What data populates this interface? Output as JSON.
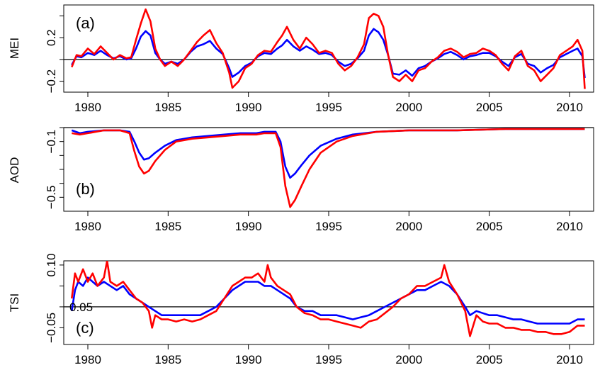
{
  "chart_data": [
    {
      "type": "line",
      "panel_label": "(a)",
      "ylabel": "MEI",
      "xlim": [
        1978.5,
        2011.5
      ],
      "ylim": [
        -0.3,
        0.5
      ],
      "x_ticks": [
        1980,
        1985,
        1990,
        1995,
        2000,
        2005,
        2010
      ],
      "y_ticks": [
        -0.2,
        0.2
      ],
      "y_minor_ticks": [
        -0.2,
        0.0,
        0.2,
        0.4
      ],
      "hline": 0.0,
      "series": [
        {
          "color": "#0000ff",
          "x": [
            1979.0,
            1979.3,
            1979.6,
            1980.0,
            1980.4,
            1980.8,
            1981.2,
            1981.6,
            1982.0,
            1982.4,
            1982.7,
            1983.0,
            1983.3,
            1983.6,
            1983.9,
            1984.2,
            1984.5,
            1984.8,
            1985.2,
            1985.6,
            1986.0,
            1986.4,
            1986.8,
            1987.2,
            1987.6,
            1988.0,
            1988.4,
            1988.8,
            1989.0,
            1989.4,
            1989.8,
            1990.2,
            1990.6,
            1991.0,
            1991.4,
            1991.8,
            1992.1,
            1992.4,
            1992.8,
            1993.2,
            1993.6,
            1994.0,
            1994.4,
            1994.8,
            1995.2,
            1995.6,
            1996.0,
            1996.4,
            1996.8,
            1997.2,
            1997.5,
            1997.8,
            1998.1,
            1998.4,
            1998.7,
            1999.0,
            1999.4,
            1999.8,
            2000.2,
            2000.6,
            2001.0,
            2001.4,
            2001.8,
            2002.2,
            2002.6,
            2003.0,
            2003.4,
            2003.8,
            2004.2,
            2004.6,
            2005.0,
            2005.4,
            2005.8,
            2006.2,
            2006.6,
            2007.0,
            2007.4,
            2007.8,
            2008.2,
            2008.6,
            2009.0,
            2009.4,
            2009.8,
            2010.2,
            2010.5,
            2010.8,
            2010.95
          ],
          "y": [
            -0.05,
            0.03,
            0.02,
            0.06,
            0.04,
            0.08,
            0.04,
            0.01,
            0.03,
            0.0,
            0.01,
            0.1,
            0.21,
            0.26,
            0.22,
            0.06,
            0.0,
            -0.04,
            -0.02,
            -0.04,
            0.0,
            0.07,
            0.12,
            0.14,
            0.17,
            0.1,
            0.05,
            -0.08,
            -0.16,
            -0.12,
            -0.06,
            -0.03,
            0.03,
            0.06,
            0.05,
            0.1,
            0.13,
            0.18,
            0.12,
            0.08,
            0.12,
            0.09,
            0.05,
            0.06,
            0.04,
            -0.02,
            -0.06,
            -0.04,
            0.01,
            0.08,
            0.22,
            0.28,
            0.25,
            0.18,
            0.04,
            -0.13,
            -0.14,
            -0.1,
            -0.15,
            -0.08,
            -0.06,
            -0.02,
            0.01,
            0.05,
            0.07,
            0.04,
            0.0,
            0.03,
            0.04,
            0.06,
            0.06,
            0.03,
            -0.02,
            -0.06,
            0.02,
            0.05,
            -0.04,
            -0.06,
            -0.12,
            -0.08,
            -0.05,
            0.02,
            0.05,
            0.08,
            0.1,
            0.03,
            -0.17
          ]
        },
        {
          "color": "#ff0000",
          "x": [
            1979.0,
            1979.3,
            1979.6,
            1980.0,
            1980.4,
            1980.8,
            1981.2,
            1981.6,
            1982.0,
            1982.4,
            1982.7,
            1983.0,
            1983.3,
            1983.6,
            1983.9,
            1984.2,
            1984.5,
            1984.8,
            1985.2,
            1985.6,
            1986.0,
            1986.4,
            1986.8,
            1987.2,
            1987.6,
            1988.0,
            1988.4,
            1988.8,
            1989.0,
            1989.4,
            1989.8,
            1990.2,
            1990.6,
            1991.0,
            1991.4,
            1991.8,
            1992.1,
            1992.4,
            1992.8,
            1993.2,
            1993.6,
            1994.0,
            1994.4,
            1994.8,
            1995.2,
            1995.6,
            1996.0,
            1996.4,
            1996.8,
            1997.2,
            1997.5,
            1997.8,
            1998.1,
            1998.4,
            1998.7,
            1999.0,
            1999.4,
            1999.8,
            2000.2,
            2000.6,
            2001.0,
            2001.4,
            2001.8,
            2002.2,
            2002.6,
            2003.0,
            2003.4,
            2003.8,
            2004.2,
            2004.6,
            2005.0,
            2005.4,
            2005.8,
            2006.2,
            2006.6,
            2007.0,
            2007.4,
            2007.8,
            2008.2,
            2008.6,
            2009.0,
            2009.4,
            2009.8,
            2010.2,
            2010.5,
            2010.8,
            2010.95
          ],
          "y": [
            -0.07,
            0.04,
            0.03,
            0.1,
            0.05,
            0.12,
            0.06,
            0.0,
            0.04,
            0.01,
            0.02,
            0.18,
            0.33,
            0.46,
            0.35,
            0.1,
            0.0,
            -0.06,
            -0.02,
            -0.06,
            0.0,
            0.08,
            0.16,
            0.22,
            0.27,
            0.15,
            0.06,
            -0.12,
            -0.26,
            -0.2,
            -0.08,
            -0.04,
            0.04,
            0.08,
            0.07,
            0.16,
            0.22,
            0.3,
            0.18,
            0.1,
            0.2,
            0.14,
            0.06,
            0.08,
            0.06,
            -0.04,
            -0.1,
            -0.06,
            0.02,
            0.14,
            0.38,
            0.42,
            0.4,
            0.3,
            0.04,
            -0.16,
            -0.2,
            -0.14,
            -0.2,
            -0.1,
            -0.08,
            -0.02,
            0.02,
            0.08,
            0.1,
            0.07,
            0.02,
            0.05,
            0.06,
            0.1,
            0.08,
            0.04,
            -0.04,
            -0.1,
            0.03,
            0.08,
            -0.06,
            -0.1,
            -0.2,
            -0.14,
            -0.08,
            0.04,
            0.08,
            0.12,
            0.18,
            0.08,
            -0.27
          ]
        }
      ]
    },
    {
      "type": "line",
      "panel_label": "(b)",
      "ylabel": "AOD",
      "xlim": [
        1978.5,
        2011.5
      ],
      "ylim": [
        -0.6,
        0.0
      ],
      "x_ticks": [
        1980,
        1985,
        1990,
        1995,
        2000,
        2005,
        2010
      ],
      "y_ticks": [
        -0.1,
        -0.5
      ],
      "y_minor_ticks": [
        -0.5,
        -0.4,
        -0.3,
        -0.2,
        -0.1,
        0.0
      ],
      "y_tick_labels": [
        "−0.1",
        "−0.5"
      ],
      "hline": 0.0,
      "series": [
        {
          "color": "#0000ff",
          "x": [
            1979.0,
            1979.5,
            1980.0,
            1981.0,
            1982.0,
            1982.6,
            1982.9,
            1983.2,
            1983.5,
            1983.8,
            1984.2,
            1984.8,
            1985.5,
            1986.5,
            1987.5,
            1988.5,
            1989.5,
            1990.5,
            1991.0,
            1991.4,
            1991.7,
            1992.0,
            1992.3,
            1992.6,
            1992.9,
            1993.3,
            1993.8,
            1994.5,
            1995.5,
            1996.5,
            1998.0,
            2000.0,
            2003.0,
            2006.0,
            2009.0,
            2010.95
          ],
          "y": [
            -0.02,
            -0.04,
            -0.03,
            -0.02,
            -0.02,
            -0.03,
            -0.1,
            -0.18,
            -0.23,
            -0.22,
            -0.18,
            -0.13,
            -0.09,
            -0.07,
            -0.06,
            -0.05,
            -0.04,
            -0.04,
            -0.03,
            -0.03,
            -0.03,
            -0.1,
            -0.28,
            -0.36,
            -0.33,
            -0.27,
            -0.2,
            -0.13,
            -0.08,
            -0.05,
            -0.03,
            -0.02,
            -0.02,
            -0.01,
            -0.01,
            -0.01
          ]
        },
        {
          "color": "#ff0000",
          "x": [
            1979.0,
            1979.5,
            1980.0,
            1981.0,
            1982.0,
            1982.6,
            1982.9,
            1983.2,
            1983.5,
            1983.8,
            1984.2,
            1984.8,
            1985.5,
            1986.5,
            1987.5,
            1988.5,
            1989.5,
            1990.5,
            1991.0,
            1991.4,
            1991.7,
            1992.0,
            1992.3,
            1992.6,
            1992.9,
            1993.3,
            1993.8,
            1994.5,
            1995.5,
            1996.5,
            1998.0,
            2000.0,
            2003.0,
            2006.0,
            2009.0,
            2010.95
          ],
          "y": [
            -0.04,
            -0.05,
            -0.04,
            -0.02,
            -0.02,
            -0.04,
            -0.17,
            -0.28,
            -0.33,
            -0.31,
            -0.24,
            -0.16,
            -0.1,
            -0.08,
            -0.07,
            -0.06,
            -0.05,
            -0.05,
            -0.04,
            -0.04,
            -0.04,
            -0.14,
            -0.42,
            -0.57,
            -0.52,
            -0.42,
            -0.3,
            -0.18,
            -0.1,
            -0.06,
            -0.03,
            -0.02,
            -0.02,
            -0.01,
            -0.01,
            -0.01
          ]
        }
      ]
    },
    {
      "type": "line",
      "panel_label": "(c)",
      "ylabel": "TSI",
      "xlim": [
        1978.5,
        2011.5
      ],
      "ylim": [
        -0.09,
        0.11
      ],
      "x_ticks": [
        1980,
        1985,
        1990,
        1995,
        2000,
        2005,
        2010
      ],
      "y_ticks": [
        -0.05,
        0.1
      ],
      "y_minor_ticks": [
        -0.05,
        0.0,
        0.05,
        0.1
      ],
      "y_tick_labels": [
        "−0.05",
        "0.10"
      ],
      "y_mid_label": "0.05",
      "hline": 0.0,
      "series": [
        {
          "color": "#0000ff",
          "x": [
            1979.0,
            1979.2,
            1979.4,
            1979.7,
            1980.0,
            1980.3,
            1980.6,
            1981.0,
            1981.4,
            1981.8,
            1982.2,
            1982.6,
            1983.0,
            1983.4,
            1983.8,
            1984.2,
            1984.6,
            1985.0,
            1985.5,
            1986.0,
            1986.5,
            1987.0,
            1987.5,
            1988.0,
            1988.5,
            1989.0,
            1989.4,
            1989.8,
            1990.2,
            1990.6,
            1991.0,
            1991.4,
            1991.8,
            1992.2,
            1992.6,
            1993.0,
            1993.5,
            1994.0,
            1994.5,
            1995.0,
            1995.5,
            1996.0,
            1996.5,
            1997.0,
            1997.5,
            1998.0,
            1998.5,
            1999.0,
            1999.5,
            2000.0,
            2000.5,
            2001.0,
            2001.5,
            2002.0,
            2002.5,
            2003.0,
            2003.5,
            2003.8,
            2004.2,
            2004.6,
            2005.0,
            2005.5,
            2006.0,
            2006.5,
            2007.0,
            2007.5,
            2008.0,
            2008.5,
            2009.0,
            2009.5,
            2010.0,
            2010.5,
            2010.95
          ],
          "y": [
            -0.01,
            0.04,
            0.06,
            0.05,
            0.07,
            0.06,
            0.05,
            0.06,
            0.05,
            0.04,
            0.05,
            0.03,
            0.02,
            0.01,
            0.0,
            -0.01,
            -0.02,
            -0.02,
            -0.02,
            -0.02,
            -0.02,
            -0.02,
            -0.01,
            0.0,
            0.02,
            0.04,
            0.05,
            0.06,
            0.06,
            0.06,
            0.05,
            0.05,
            0.04,
            0.03,
            0.02,
            0.0,
            -0.01,
            -0.01,
            -0.02,
            -0.02,
            -0.02,
            -0.025,
            -0.03,
            -0.025,
            -0.02,
            -0.01,
            0.0,
            0.01,
            0.02,
            0.03,
            0.04,
            0.04,
            0.05,
            0.06,
            0.05,
            0.03,
            0.0,
            -0.02,
            -0.01,
            -0.015,
            -0.02,
            -0.02,
            -0.025,
            -0.03,
            -0.03,
            -0.035,
            -0.04,
            -0.04,
            -0.04,
            -0.04,
            -0.04,
            -0.03,
            -0.03
          ]
        },
        {
          "color": "#ff0000",
          "x": [
            1979.0,
            1979.2,
            1979.4,
            1979.7,
            1980.0,
            1980.3,
            1980.6,
            1981.0,
            1981.2,
            1981.4,
            1981.8,
            1982.2,
            1982.6,
            1983.0,
            1983.4,
            1983.8,
            1984.0,
            1984.2,
            1984.6,
            1985.0,
            1985.5,
            1986.0,
            1986.5,
            1987.0,
            1987.5,
            1988.0,
            1988.5,
            1989.0,
            1989.4,
            1989.8,
            1990.2,
            1990.6,
            1991.0,
            1991.2,
            1991.4,
            1991.8,
            1992.2,
            1992.6,
            1993.0,
            1993.5,
            1994.0,
            1994.5,
            1995.0,
            1995.5,
            1996.0,
            1996.5,
            1997.0,
            1997.5,
            1998.0,
            1998.5,
            1999.0,
            1999.5,
            2000.0,
            2000.5,
            2001.0,
            2001.5,
            2002.0,
            2002.2,
            2002.5,
            2003.0,
            2003.5,
            2003.8,
            2004.2,
            2004.6,
            2005.0,
            2005.5,
            2006.0,
            2006.5,
            2007.0,
            2007.5,
            2008.0,
            2008.5,
            2009.0,
            2009.5,
            2010.0,
            2010.5,
            2010.95
          ],
          "y": [
            0.02,
            0.08,
            0.06,
            0.09,
            0.06,
            0.08,
            0.05,
            0.07,
            0.11,
            0.06,
            0.05,
            0.06,
            0.04,
            0.02,
            0.01,
            -0.01,
            -0.05,
            -0.02,
            -0.03,
            -0.03,
            -0.035,
            -0.03,
            -0.035,
            -0.03,
            -0.02,
            -0.01,
            0.02,
            0.05,
            0.06,
            0.07,
            0.07,
            0.08,
            0.06,
            0.1,
            0.07,
            0.05,
            0.04,
            0.03,
            0.0,
            -0.015,
            -0.02,
            -0.03,
            -0.03,
            -0.035,
            -0.04,
            -0.045,
            -0.05,
            -0.035,
            -0.03,
            -0.015,
            0.0,
            0.02,
            0.03,
            0.05,
            0.05,
            0.06,
            0.07,
            0.1,
            0.06,
            0.03,
            -0.01,
            -0.07,
            -0.02,
            -0.035,
            -0.04,
            -0.04,
            -0.05,
            -0.05,
            -0.055,
            -0.055,
            -0.06,
            -0.06,
            -0.065,
            -0.065,
            -0.06,
            -0.045,
            -0.045
          ]
        }
      ]
    }
  ]
}
